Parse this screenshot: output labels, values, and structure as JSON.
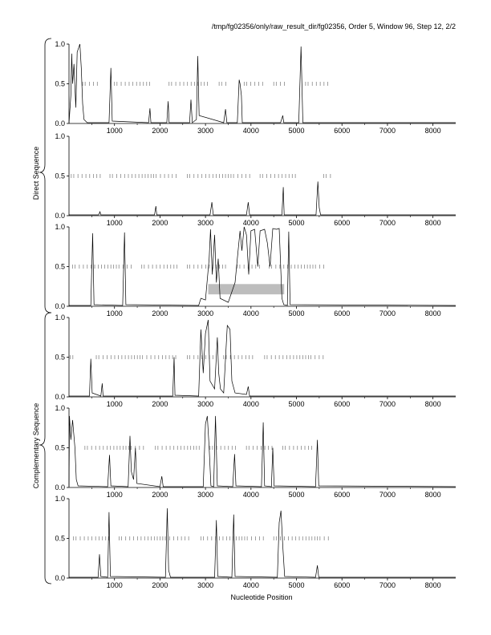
{
  "header": {
    "title": "/tmp/fg02356/only/raw_result_dir/fg02356, Order 5, Window 96, Step 12, 2/2"
  },
  "axes_text": {
    "xlabel": "Nucleotide Position",
    "group_direct": "Direct Sequence",
    "group_complementary": "Complementary Sequence"
  },
  "chart_data": {
    "type": "line",
    "title": "/tmp/fg02356/only/raw_result_dir/fg02356, Order 5, Window 96, Step 12, 2/2",
    "xlabel": "Nucleotide Position",
    "xlim": [
      0,
      8500
    ],
    "ylim": [
      0,
      1.0
    ],
    "x_ticks": [
      1000,
      2000,
      3000,
      4000,
      5000,
      6000,
      7000,
      8000
    ],
    "y_ticks": [
      0.0,
      0.5,
      1.0
    ],
    "grid": false,
    "groups": [
      {
        "label": "Direct Sequence",
        "panels": [
          1,
          2,
          3
        ]
      },
      {
        "label": "Complementary Sequence",
        "panels": [
          4,
          5,
          6
        ]
      }
    ],
    "panels": [
      {
        "id": 1,
        "series": [
          [
            0,
            0
          ],
          [
            40,
            0.35
          ],
          [
            60,
            0.88
          ],
          [
            80,
            0.5
          ],
          [
            110,
            0.75
          ],
          [
            150,
            0.2
          ],
          [
            180,
            0.9
          ],
          [
            210,
            0.95
          ],
          [
            240,
            1.0
          ],
          [
            270,
            0.7
          ],
          [
            300,
            0.25
          ],
          [
            330,
            0.05
          ],
          [
            400,
            0.01
          ],
          [
            880,
            0.01
          ],
          [
            920,
            0.7
          ],
          [
            950,
            0.03
          ],
          [
            1750,
            0.01
          ],
          [
            1780,
            0.19
          ],
          [
            1800,
            0.01
          ],
          [
            2150,
            0.01
          ],
          [
            2180,
            0.28
          ],
          [
            2200,
            0.01
          ],
          [
            2650,
            0.01
          ],
          [
            2680,
            0.3
          ],
          [
            2710,
            0.01
          ],
          [
            2800,
            0.05
          ],
          [
            2830,
            0.85
          ],
          [
            2860,
            0.1
          ],
          [
            3400,
            0.01
          ],
          [
            3440,
            0.18
          ],
          [
            3470,
            0.01
          ],
          [
            3700,
            0.01
          ],
          [
            3740,
            0.55
          ],
          [
            3760,
            0.5
          ],
          [
            3790,
            0.35
          ],
          [
            3810,
            0.01
          ],
          [
            4650,
            0.01
          ],
          [
            4700,
            0.1
          ],
          [
            4720,
            0.01
          ],
          [
            5050,
            0.01
          ],
          [
            5100,
            0.97
          ],
          [
            5140,
            0.01
          ],
          [
            8500,
            0.01
          ]
        ],
        "midline_ticks": [
          [
            300,
            700
          ],
          [
            1000,
            1800
          ],
          [
            2200,
            3100
          ],
          [
            3300,
            3500
          ],
          [
            3850,
            4300
          ],
          [
            4500,
            4800
          ],
          [
            5200,
            5700
          ]
        ]
      },
      {
        "id": 2,
        "series": [
          [
            0,
            0.01
          ],
          [
            650,
            0.01
          ],
          [
            680,
            0.05
          ],
          [
            700,
            0.01
          ],
          [
            1880,
            0.01
          ],
          [
            1910,
            0.12
          ],
          [
            1930,
            0.01
          ],
          [
            3100,
            0.01
          ],
          [
            3140,
            0.17
          ],
          [
            3170,
            0.01
          ],
          [
            3900,
            0.01
          ],
          [
            3940,
            0.17
          ],
          [
            3970,
            0.01
          ],
          [
            4680,
            0.01
          ],
          [
            4710,
            0.36
          ],
          [
            4730,
            0.01
          ],
          [
            5430,
            0.01
          ],
          [
            5470,
            0.43
          ],
          [
            5500,
            0.1
          ],
          [
            5530,
            0.01
          ],
          [
            8500,
            0.01
          ]
        ],
        "midline_ticks": [
          [
            50,
            700
          ],
          [
            900,
            2400
          ],
          [
            2600,
            4000
          ],
          [
            4200,
            5000
          ],
          [
            5600,
            5750
          ]
        ]
      },
      {
        "id": 3,
        "series": [
          [
            0,
            0.01
          ],
          [
            480,
            0.01
          ],
          [
            520,
            0.92
          ],
          [
            550,
            0.02
          ],
          [
            1180,
            0.01
          ],
          [
            1220,
            0.93
          ],
          [
            1250,
            0.02
          ],
          [
            2850,
            0.01
          ],
          [
            2900,
            0.1
          ],
          [
            3000,
            0.08
          ],
          [
            3080,
            0.6
          ],
          [
            3110,
            0.97
          ],
          [
            3150,
            0.4
          ],
          [
            3200,
            0.9
          ],
          [
            3240,
            0.3
          ],
          [
            3280,
            0.6
          ],
          [
            3320,
            0.1
          ],
          [
            3500,
            0.05
          ],
          [
            3650,
            0.3
          ],
          [
            3700,
            0.6
          ],
          [
            3760,
            0.95
          ],
          [
            3800,
            0.7
          ],
          [
            3850,
            1.0
          ],
          [
            3900,
            0.9
          ],
          [
            3950,
            0.4
          ],
          [
            4000,
            0.95
          ],
          [
            4080,
            0.97
          ],
          [
            4150,
            0.5
          ],
          [
            4200,
            0.95
          ],
          [
            4300,
            0.97
          ],
          [
            4360,
            0.8
          ],
          [
            4420,
            0.5
          ],
          [
            4480,
            0.98
          ],
          [
            4560,
            0.97
          ],
          [
            4620,
            0.98
          ],
          [
            4680,
            0.1
          ],
          [
            4720,
            0.02
          ],
          [
            4800,
            0.01
          ],
          [
            4830,
            0.94
          ],
          [
            4860,
            0.02
          ],
          [
            8500,
            0.01
          ]
        ],
        "midline_ticks": [
          [
            80,
            1400
          ],
          [
            1600,
            2400
          ],
          [
            2600,
            3500
          ],
          [
            3700,
            4200
          ],
          [
            4400,
            5600
          ]
        ],
        "highlight": {
          "x": [
            3060,
            4730
          ],
          "y": [
            0.15,
            0.28
          ]
        }
      },
      {
        "id": 4,
        "series": [
          [
            0,
            0.01
          ],
          [
            450,
            0.01
          ],
          [
            480,
            0.48
          ],
          [
            510,
            0.05
          ],
          [
            700,
            0.01
          ],
          [
            730,
            0.17
          ],
          [
            750,
            0.01
          ],
          [
            2280,
            0.01
          ],
          [
            2310,
            0.5
          ],
          [
            2330,
            0.02
          ],
          [
            2850,
            0.01
          ],
          [
            2900,
            0.85
          ],
          [
            2950,
            0.3
          ],
          [
            3000,
            0.8
          ],
          [
            3060,
            0.97
          ],
          [
            3100,
            0.2
          ],
          [
            3200,
            0.1
          ],
          [
            3260,
            0.75
          ],
          [
            3290,
            0.3
          ],
          [
            3330,
            0.1
          ],
          [
            3400,
            0.05
          ],
          [
            3480,
            0.9
          ],
          [
            3540,
            0.85
          ],
          [
            3580,
            0.2
          ],
          [
            3650,
            0.05
          ],
          [
            3900,
            0.03
          ],
          [
            3940,
            0.13
          ],
          [
            3970,
            0.01
          ],
          [
            8500,
            0.01
          ]
        ],
        "midline_ticks": [
          [
            30,
            100
          ],
          [
            600,
            2400
          ],
          [
            2600,
            3200
          ],
          [
            3400,
            4100
          ],
          [
            4300,
            5600
          ]
        ]
      },
      {
        "id": 5,
        "series": [
          [
            0,
            0.01
          ],
          [
            10,
            0.9
          ],
          [
            40,
            0.6
          ],
          [
            80,
            0.85
          ],
          [
            130,
            0.5
          ],
          [
            160,
            0.1
          ],
          [
            200,
            0.02
          ],
          [
            850,
            0.01
          ],
          [
            890,
            0.41
          ],
          [
            920,
            0.02
          ],
          [
            1300,
            0.01
          ],
          [
            1340,
            0.65
          ],
          [
            1370,
            0.2
          ],
          [
            1420,
            0.1
          ],
          [
            1460,
            0.5
          ],
          [
            1490,
            0.05
          ],
          [
            2000,
            0.01
          ],
          [
            2040,
            0.14
          ],
          [
            2070,
            0.01
          ],
          [
            2950,
            0.01
          ],
          [
            3000,
            0.8
          ],
          [
            3040,
            0.9
          ],
          [
            3080,
            0.5
          ],
          [
            3120,
            0.02
          ],
          [
            3180,
            0.01
          ],
          [
            3220,
            0.9
          ],
          [
            3260,
            0.02
          ],
          [
            3600,
            0.01
          ],
          [
            3640,
            0.42
          ],
          [
            3670,
            0.02
          ],
          [
            4230,
            0.01
          ],
          [
            4270,
            0.82
          ],
          [
            4300,
            0.02
          ],
          [
            4450,
            0.01
          ],
          [
            4480,
            0.5
          ],
          [
            4510,
            0.02
          ],
          [
            5420,
            0.01
          ],
          [
            5460,
            0.6
          ],
          [
            5490,
            0.02
          ],
          [
            8500,
            0.01
          ]
        ],
        "midline_ticks": [
          [
            350,
            1700
          ],
          [
            1900,
            2900
          ],
          [
            3100,
            3700
          ],
          [
            3900,
            4500
          ],
          [
            4700,
            5400
          ]
        ]
      },
      {
        "id": 6,
        "series": [
          [
            0,
            0.01
          ],
          [
            640,
            0.01
          ],
          [
            670,
            0.3
          ],
          [
            700,
            0.02
          ],
          [
            850,
            0.01
          ],
          [
            880,
            0.83
          ],
          [
            910,
            0.02
          ],
          [
            2120,
            0.01
          ],
          [
            2160,
            0.88
          ],
          [
            2190,
            0.1
          ],
          [
            2230,
            0.01
          ],
          [
            3200,
            0.01
          ],
          [
            3240,
            0.73
          ],
          [
            3270,
            0.02
          ],
          [
            3580,
            0.01
          ],
          [
            3620,
            0.8
          ],
          [
            3650,
            0.02
          ],
          [
            4580,
            0.01
          ],
          [
            4620,
            0.7
          ],
          [
            4660,
            0.85
          ],
          [
            4700,
            0.4
          ],
          [
            4740,
            0.02
          ],
          [
            5420,
            0.01
          ],
          [
            5460,
            0.16
          ],
          [
            5490,
            0.01
          ],
          [
            8500,
            0.01
          ]
        ],
        "midline_ticks": [
          [
            100,
            900
          ],
          [
            1100,
            2700
          ],
          [
            2900,
            4300
          ],
          [
            4500,
            5750
          ]
        ]
      }
    ]
  }
}
